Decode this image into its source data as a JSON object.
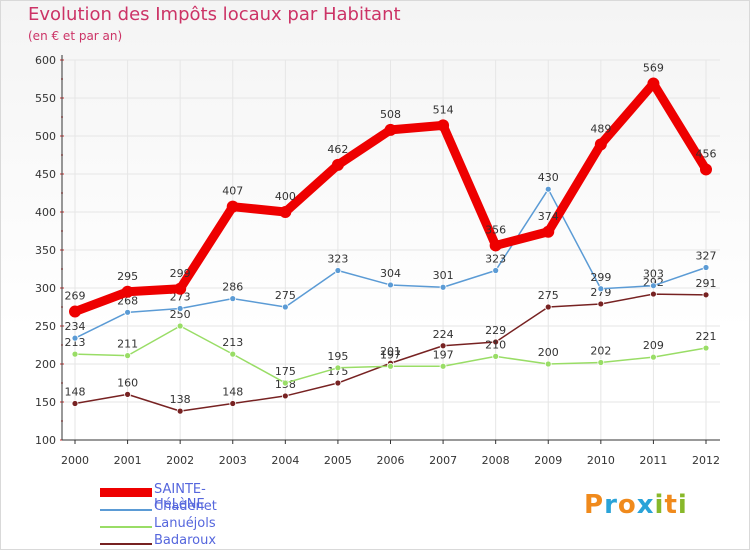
{
  "title": "Evolution des Impôts locaux par Habitant",
  "subtitle": "(en € et par an)",
  "logo": {
    "letters": [
      "P",
      "r",
      "o",
      "x",
      "i",
      "t",
      "i"
    ],
    "colors": [
      "#f08a1c",
      "#2aa3d8",
      "#f08a1c",
      "#2aa3d8",
      "#88b82a",
      "#f08a1c",
      "#88b82a"
    ]
  },
  "chart_data": {
    "type": "line",
    "x": [
      "2000",
      "2001",
      "2002",
      "2003",
      "2004",
      "2005",
      "2006",
      "2007",
      "2008",
      "2009",
      "2010",
      "2011",
      "2012"
    ],
    "ylim": [
      100,
      600
    ],
    "yticks": [
      "100",
      "150",
      "200",
      "250",
      "300",
      "350",
      "400",
      "450",
      "500",
      "550",
      "600"
    ],
    "grid": true,
    "series": [
      {
        "name": "SAINTE-HéLèNE",
        "color": "#ee0000",
        "values": [
          269,
          295,
          299,
          407,
          400,
          462,
          508,
          514,
          356,
          374,
          489,
          569,
          456
        ],
        "labels": [
          "269",
          "295",
          "299",
          "407",
          "400",
          "462",
          "508",
          "514",
          "356",
          "374",
          "489",
          "569",
          "456"
        ]
      },
      {
        "name": "Chadenet",
        "color": "#5b9bd5",
        "values": [
          234,
          268,
          273,
          286,
          275,
          323,
          304,
          301,
          323,
          430,
          299,
          303,
          327
        ],
        "labels": [
          "234",
          "268",
          "273",
          "286",
          "275",
          "323",
          "304",
          "301",
          "323",
          "430",
          "299",
          "303",
          "327"
        ]
      },
      {
        "name": "Lanuéjols",
        "color": "#99dd66",
        "values": [
          213,
          211,
          250,
          213,
          175,
          195,
          197,
          197,
          210,
          200,
          202,
          209,
          221
        ],
        "labels": [
          "213",
          "211",
          "250",
          "213",
          "175",
          "195",
          "197",
          "197",
          "210",
          "200",
          "202",
          "209",
          "221"
        ]
      },
      {
        "name": "Badaroux",
        "color": "#772222",
        "values": [
          148,
          160,
          138,
          148,
          158,
          175,
          201,
          224,
          229,
          275,
          279,
          292,
          291
        ],
        "labels": [
          "148",
          "160",
          "138",
          "148",
          "158",
          "175",
          "201",
          "224",
          "229",
          "275",
          "279",
          "292",
          "291"
        ]
      }
    ]
  }
}
